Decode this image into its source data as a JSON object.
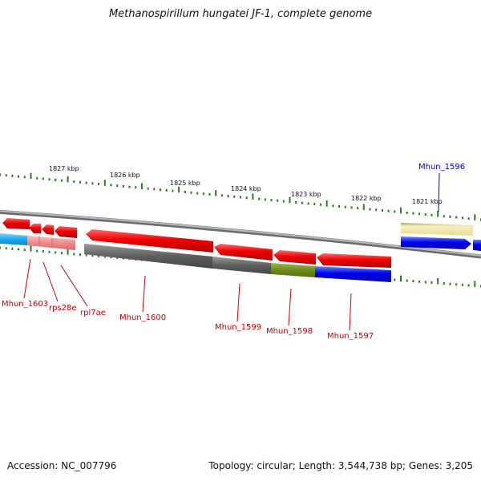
{
  "title": "Methanospirillum hungatei JF-1, complete genome",
  "footer": {
    "accession": "Accession: NC_007796",
    "summary": "Topology: circular; Length: 3,544,738 bp; Genes: 3,205"
  },
  "ruler": {
    "ticks": [
      "1827 kbp",
      "1826 kbp",
      "1825 kbp",
      "1824 kbp",
      "1823 kbp",
      "1822 kbp",
      "1821 kbp"
    ],
    "tick_color": "#2a7a1a"
  },
  "genes": [
    {
      "name": "Mhun_1603",
      "color": "#cc0000",
      "strand": "reverse"
    },
    {
      "name": "rps28e",
      "color": "#cc0000",
      "strand": "reverse"
    },
    {
      "name": "rpl7ae",
      "color": "#cc0000",
      "strand": "reverse"
    },
    {
      "name": "Mhun_1600",
      "color": "#cc0000",
      "strand": "reverse"
    },
    {
      "name": "Mhun_1599",
      "color": "#cc0000",
      "strand": "reverse"
    },
    {
      "name": "Mhun_1598",
      "color": "#cc0000",
      "strand": "reverse"
    },
    {
      "name": "Mhun_1597",
      "color": "#cc0000",
      "strand": "reverse"
    },
    {
      "name": "Mhun_1596",
      "color": "#0000cc",
      "strand": "forward"
    }
  ],
  "colors": {
    "backbone": "#8a8a8a",
    "gene_red": "#ee0000",
    "gene_blue": "#0000ee",
    "cds_gray": "#6a6a6a",
    "cds_green": "#6e8c1a",
    "cds_cyan": "#19a9ee",
    "cds_pink": "#f08a8a",
    "cds_yellow": "#ece6a4"
  }
}
